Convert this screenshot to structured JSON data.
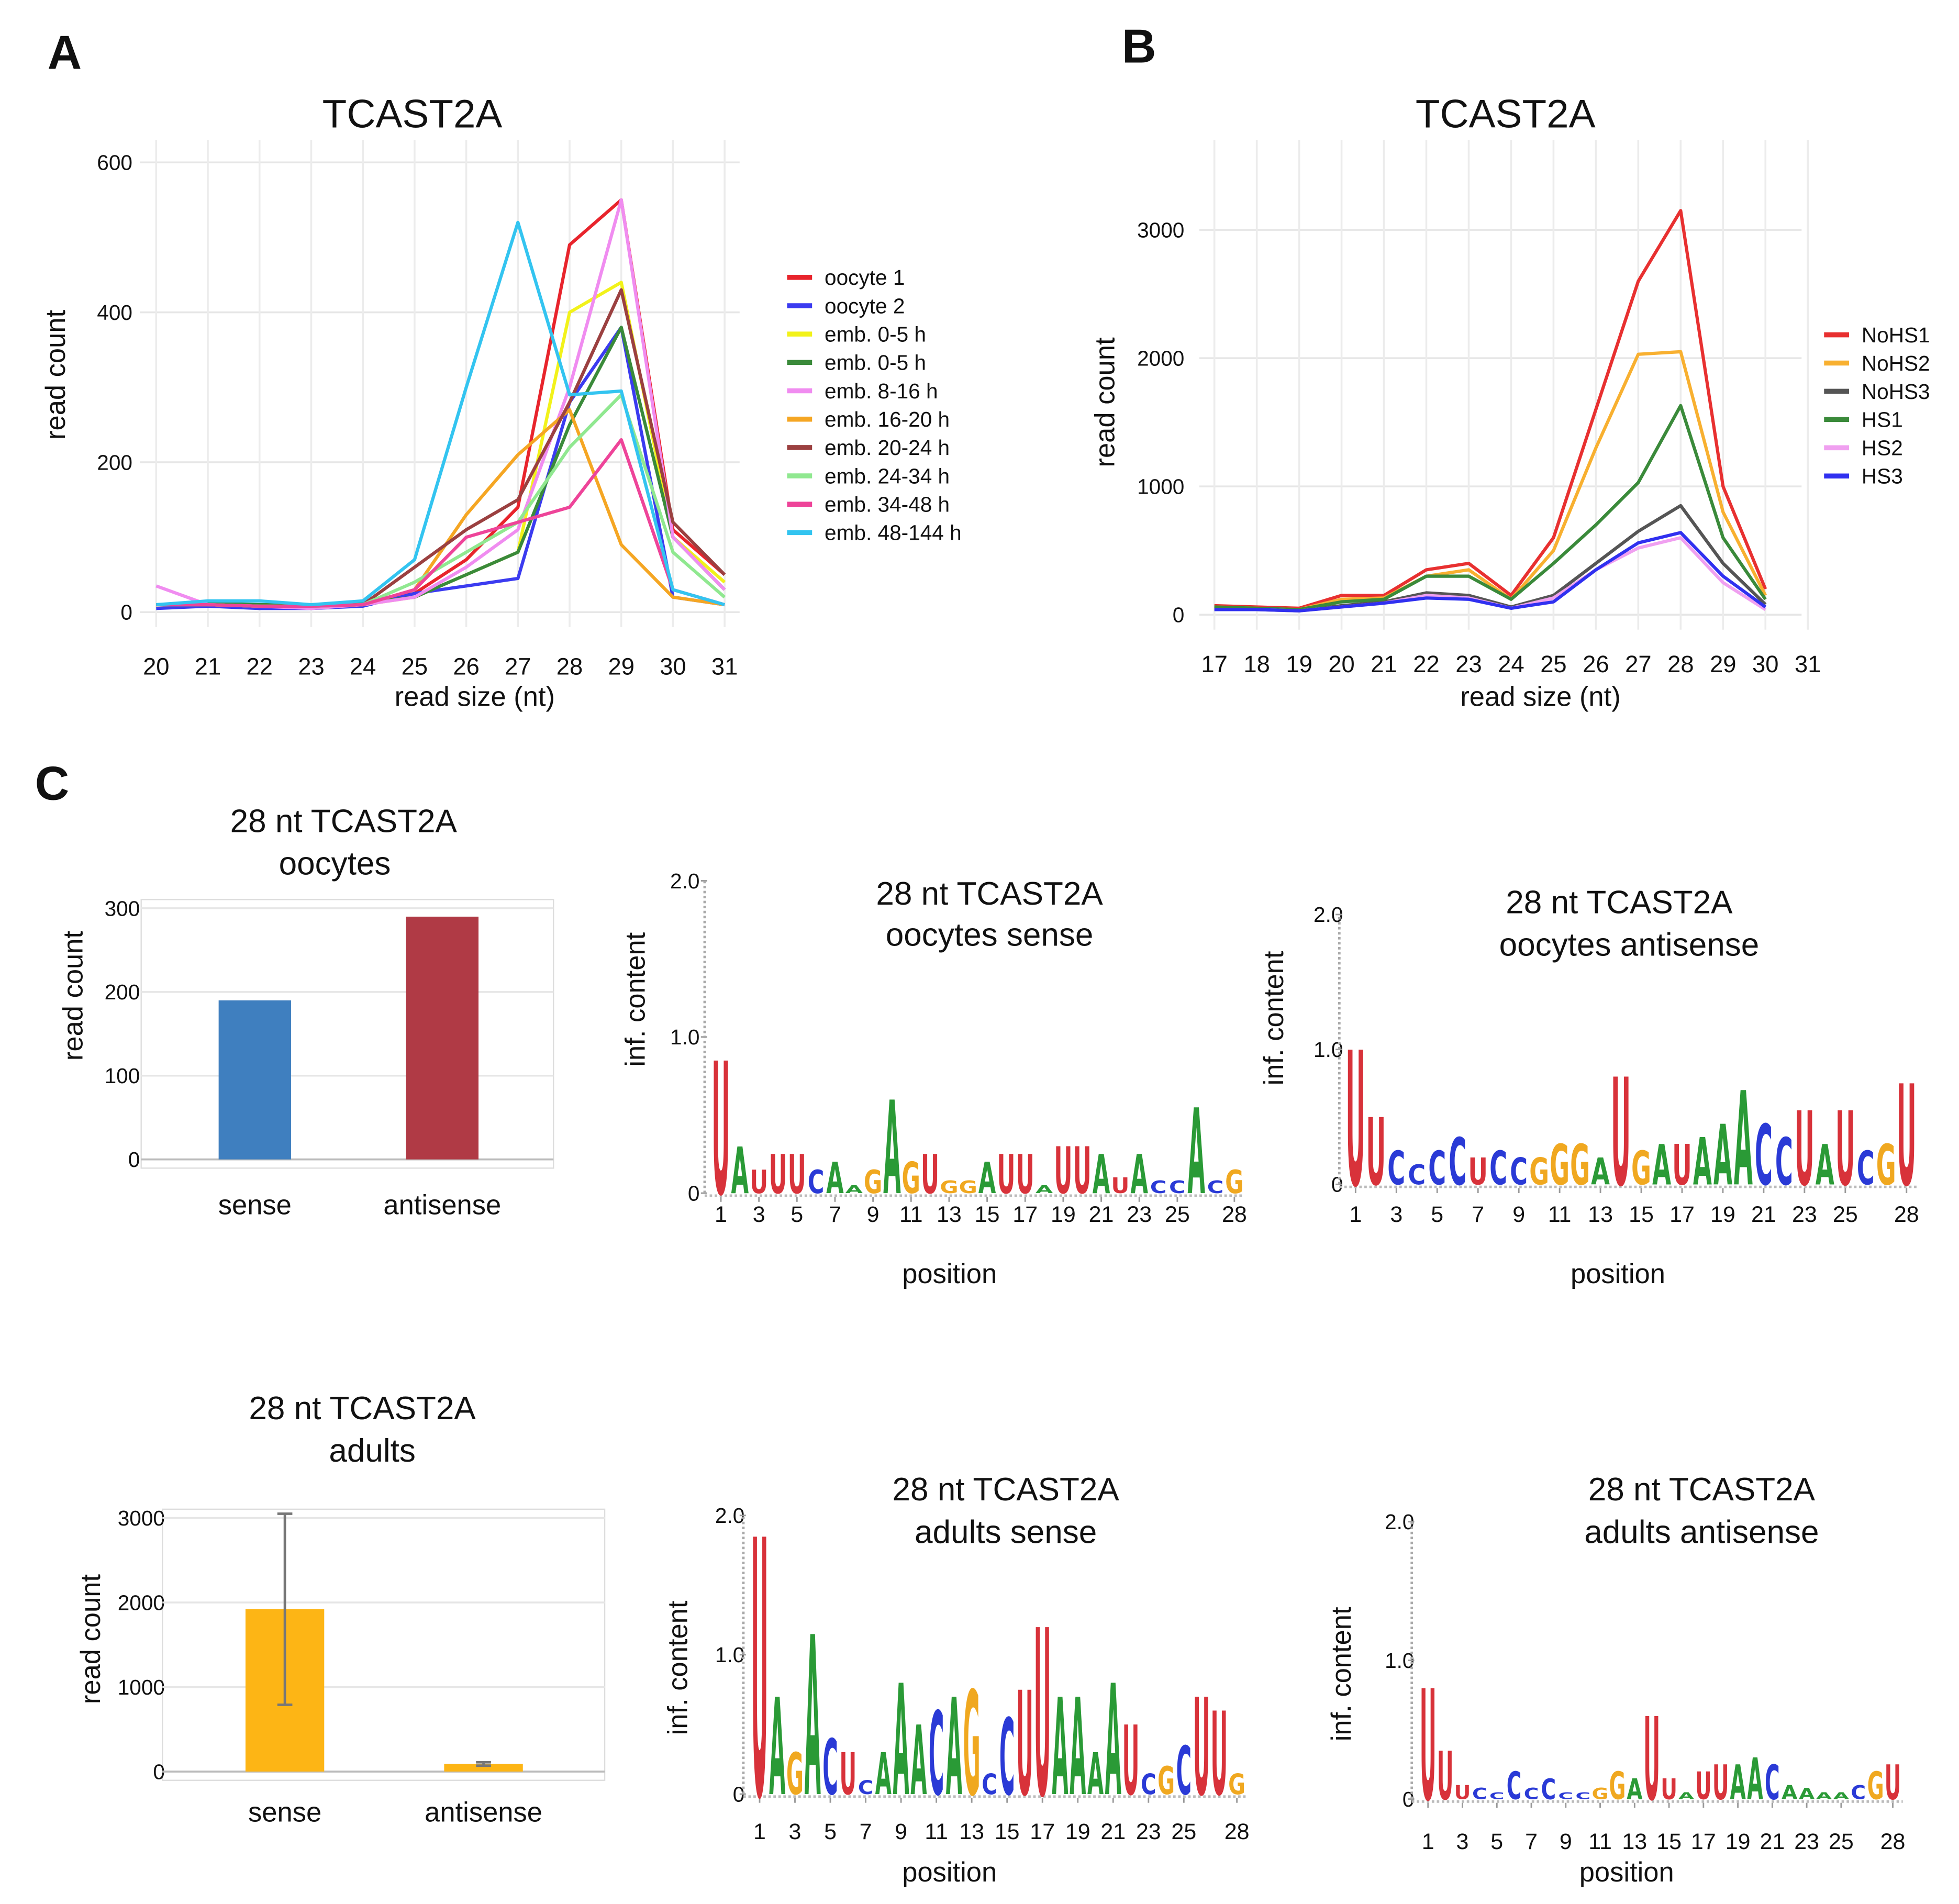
{
  "panels": [
    "A",
    "B",
    "C"
  ],
  "chart_data": [
    {
      "type": "line",
      "title": "TCAST2A",
      "ylabel": "read count",
      "xlabel": "read size  (nt)",
      "x": [
        20,
        21,
        22,
        23,
        24,
        25,
        26,
        27,
        28,
        29,
        30,
        31
      ],
      "xlim": [
        20,
        31
      ],
      "xticks": [
        20,
        21,
        22,
        23,
        24,
        25,
        26,
        27,
        28,
        29,
        30,
        31
      ],
      "ylim": [
        0,
        600
      ],
      "yticks": [
        0,
        200,
        400,
        600
      ],
      "grid": true,
      "legend": "right",
      "series": [
        {
          "name": "oocyte 1",
          "color": "#e8242c",
          "values": [
            10,
            10,
            8,
            8,
            10,
            25,
            70,
            140,
            490,
            550,
            110,
            50
          ]
        },
        {
          "name": "oocyte 2",
          "color": "#3b3bf0",
          "values": [
            5,
            8,
            5,
            5,
            8,
            25,
            35,
            45,
            280,
            380,
            20,
            10
          ]
        },
        {
          "name": "emb. 0-5 h",
          "color": "#f2f21a",
          "values": [
            10,
            10,
            8,
            8,
            10,
            20,
            50,
            80,
            400,
            440,
            100,
            40
          ]
        },
        {
          "name": "emb. 0-5 h",
          "color": "#3a8a3a",
          "values": [
            10,
            12,
            10,
            10,
            12,
            20,
            50,
            80,
            250,
            380,
            100,
            30
          ]
        },
        {
          "name": "emb. 8-16 h",
          "color": "#f08cf0",
          "values": [
            35,
            10,
            8,
            5,
            10,
            20,
            60,
            110,
            300,
            550,
            100,
            30
          ]
        },
        {
          "name": "emb. 16-20 h",
          "color": "#f5a623",
          "values": [
            10,
            10,
            8,
            8,
            10,
            30,
            130,
            210,
            270,
            90,
            20,
            10
          ]
        },
        {
          "name": "emb. 20-24 h",
          "color": "#9b4040",
          "values": [
            10,
            10,
            8,
            8,
            10,
            60,
            110,
            150,
            280,
            430,
            120,
            50
          ]
        },
        {
          "name": "emb. 24-34 h",
          "color": "#90e890",
          "values": [
            10,
            10,
            8,
            8,
            10,
            40,
            80,
            120,
            220,
            290,
            80,
            20
          ]
        },
        {
          "name": "emb. 34-48 h",
          "color": "#ee4499",
          "values": [
            10,
            10,
            8,
            8,
            10,
            30,
            100,
            120,
            140,
            230,
            30,
            10
          ]
        },
        {
          "name": "emb. 48-144 h",
          "color": "#33c4f0",
          "values": [
            10,
            15,
            15,
            10,
            15,
            70,
            300,
            520,
            290,
            295,
            30,
            10
          ]
        }
      ]
    },
    {
      "type": "line",
      "title": "TCAST2A",
      "ylabel": "read count",
      "xlabel": "read size (nt)",
      "x": [
        17,
        18,
        19,
        20,
        21,
        22,
        23,
        24,
        25,
        26,
        27,
        28,
        29,
        30
      ],
      "xlim": [
        17,
        31
      ],
      "xticks": [
        17,
        18,
        19,
        20,
        21,
        22,
        23,
        24,
        25,
        26,
        27,
        28,
        29,
        30,
        31
      ],
      "ylim": [
        0,
        3000
      ],
      "yticks": [
        0,
        1000,
        2000,
        3000
      ],
      "grid": true,
      "legend": "right",
      "series": [
        {
          "name": "NoHS1",
          "color": "#e83030",
          "values": [
            70,
            60,
            50,
            150,
            150,
            350,
            400,
            150,
            600,
            1600,
            2600,
            3150,
            1000,
            200
          ]
        },
        {
          "name": "NoHS2",
          "color": "#f8b030",
          "values": [
            60,
            50,
            40,
            120,
            130,
            300,
            350,
            120,
            500,
            1300,
            2030,
            2050,
            800,
            150
          ]
        },
        {
          "name": "NoHS3",
          "color": "#555555",
          "values": [
            50,
            40,
            30,
            70,
            100,
            170,
            150,
            60,
            150,
            400,
            650,
            850,
            400,
            80
          ]
        },
        {
          "name": "HS1",
          "color": "#3a8a3a",
          "values": [
            60,
            50,
            40,
            100,
            120,
            300,
            300,
            120,
            400,
            700,
            1030,
            1630,
            600,
            120
          ]
        },
        {
          "name": "HS2",
          "color": "#f0a0f0",
          "values": [
            40,
            40,
            30,
            60,
            90,
            150,
            130,
            50,
            130,
            350,
            520,
            600,
            250,
            40
          ]
        },
        {
          "name": "HS3",
          "color": "#3030f0",
          "values": [
            40,
            40,
            30,
            60,
            90,
            130,
            120,
            50,
            100,
            350,
            560,
            640,
            300,
            60
          ]
        }
      ]
    },
    {
      "type": "bar",
      "title": [
        "28 nt TCAST2A",
        "oocytes"
      ],
      "ylabel": "read count",
      "categories": [
        "sense",
        "antisense"
      ],
      "values": [
        190,
        290
      ],
      "colors": [
        "#3f7fbf",
        "#b03a45"
      ],
      "ylim": [
        0,
        300
      ],
      "yticks": [
        0,
        100,
        200,
        300
      ],
      "grid": true
    },
    {
      "type": "logo",
      "title": [
        "28 nt TCAST2A",
        "oocytes sense"
      ],
      "ylabel": "inf. content",
      "xlabel": "position",
      "letters": [
        "U",
        "A",
        "U",
        "U",
        "U",
        "C",
        "A",
        "A",
        "G",
        "A",
        "G",
        "U",
        "G",
        "G",
        "A",
        "U",
        "U",
        "A",
        "U",
        "U",
        "A",
        "U",
        "A",
        "C",
        "C",
        "A",
        "C",
        "G"
      ],
      "values": [
        0.85,
        0.3,
        0.15,
        0.25,
        0.25,
        0.15,
        0.2,
        0.05,
        0.15,
        0.6,
        0.2,
        0.25,
        0.08,
        0.08,
        0.2,
        0.25,
        0.25,
        0.05,
        0.3,
        0.3,
        0.25,
        0.1,
        0.25,
        0.08,
        0.08,
        0.55,
        0.08,
        0.15
      ],
      "xlim": [
        1,
        28
      ],
      "xticks": [
        1,
        3,
        5,
        7,
        9,
        11,
        13,
        15,
        17,
        19,
        21,
        23,
        25,
        28
      ],
      "ylim": [
        0,
        2
      ],
      "yticks": [
        0,
        {
          "value": 1,
          "label": "1.0"
        },
        {
          "value": 2,
          "label": "2.0"
        }
      ],
      "letter_colors": {
        "A": "#2a9a36",
        "C": "#2a3ad6",
        "G": "#f0a820",
        "U": "#d8323a"
      }
    },
    {
      "type": "logo",
      "title": [
        "28 nt TCAST2A",
        "oocytes antisense"
      ],
      "ylabel": "inf. content",
      "xlabel": "position",
      "letters": [
        "U",
        "U",
        "C",
        "C",
        "C",
        "C",
        "U",
        "C",
        "C",
        "G",
        "G",
        "G",
        "A",
        "U",
        "G",
        "A",
        "U",
        "A",
        "A",
        "A",
        "C",
        "C",
        "U",
        "A",
        "U",
        "C",
        "G",
        "U"
      ],
      "values": [
        1.0,
        0.5,
        0.25,
        0.15,
        0.25,
        0.35,
        0.2,
        0.25,
        0.2,
        0.2,
        0.3,
        0.3,
        0.2,
        0.8,
        0.25,
        0.3,
        0.3,
        0.35,
        0.45,
        0.7,
        0.45,
        0.35,
        0.55,
        0.3,
        0.55,
        0.25,
        0.3,
        0.75
      ],
      "xlim": [
        1,
        28
      ],
      "xticks": [
        1,
        3,
        5,
        7,
        9,
        11,
        13,
        15,
        17,
        19,
        21,
        23,
        25,
        28
      ],
      "ylim": [
        0,
        2
      ],
      "yticks": [
        0,
        {
          "value": 1,
          "label": "1.0"
        },
        {
          "value": 2,
          "label": "2.0"
        }
      ],
      "letter_colors": {
        "A": "#2a9a36",
        "C": "#2a3ad6",
        "G": "#f0a820",
        "U": "#d8323a"
      }
    },
    {
      "type": "bar",
      "title": [
        "28 nt TCAST2A",
        "adults"
      ],
      "ylabel": "read count",
      "categories": [
        "sense",
        "antisense"
      ],
      "values": [
        1920,
        90
      ],
      "error": [
        1130,
        20
      ],
      "colors": [
        "#fdb515",
        "#fdb515"
      ],
      "ylim": [
        0,
        3000
      ],
      "yticks": [
        0,
        1000,
        2000,
        3000
      ],
      "grid": true
    },
    {
      "type": "logo",
      "title": [
        "28 nt TCAST2A",
        "adults sense"
      ],
      "ylabel": "inf. content",
      "xlabel": "position",
      "letters": [
        "U",
        "A",
        "G",
        "A",
        "C",
        "U",
        "C",
        "A",
        "A",
        "A",
        "C",
        "A",
        "G",
        "C",
        "C",
        "U",
        "U",
        "A",
        "A",
        "A",
        "A",
        "U",
        "C",
        "G",
        "C",
        "U",
        "U",
        "G"
      ],
      "values": [
        1.85,
        0.7,
        0.3,
        1.15,
        0.4,
        0.3,
        0.1,
        0.3,
        0.8,
        0.5,
        0.6,
        0.7,
        0.75,
        0.15,
        0.55,
        0.75,
        1.2,
        0.7,
        0.7,
        0.3,
        0.8,
        0.5,
        0.15,
        0.2,
        0.35,
        0.7,
        0.6,
        0.15
      ],
      "xlim": [
        1,
        28
      ],
      "xticks": [
        1,
        3,
        5,
        7,
        9,
        11,
        13,
        15,
        17,
        19,
        21,
        23,
        25,
        28
      ],
      "ylim": [
        0,
        2
      ],
      "yticks": [
        0,
        {
          "value": 1,
          "label": "1.0"
        },
        {
          "value": 2,
          "label": "2.0"
        }
      ],
      "letter_colors": {
        "A": "#2a9a36",
        "C": "#2a3ad6",
        "G": "#f0a820",
        "U": "#d8323a"
      }
    },
    {
      "type": "logo",
      "title": [
        "28 nt TCAST2A",
        "adults antisense"
      ],
      "ylabel": "inf. content",
      "xlabel": "position",
      "letters": [
        "U",
        "U",
        "U",
        "C",
        "C",
        "C",
        "C",
        "C",
        "C",
        "C",
        "G",
        "G",
        "A",
        "U",
        "U",
        "A",
        "U",
        "U",
        "A",
        "A",
        "C",
        "A",
        "A",
        "A",
        "A",
        "C",
        "G",
        "U"
      ],
      "values": [
        0.8,
        0.35,
        0.1,
        0.08,
        0.05,
        0.2,
        0.08,
        0.15,
        0.05,
        0.05,
        0.08,
        0.2,
        0.15,
        0.6,
        0.15,
        0.05,
        0.2,
        0.25,
        0.25,
        0.3,
        0.25,
        0.1,
        0.08,
        0.05,
        0.05,
        0.1,
        0.2,
        0.25
      ],
      "xlim": [
        1,
        28
      ],
      "xticks": [
        1,
        3,
        5,
        7,
        9,
        11,
        13,
        15,
        17,
        19,
        21,
        23,
        25,
        28
      ],
      "ylim": [
        0,
        2
      ],
      "yticks": [
        0,
        {
          "value": 1,
          "label": "1.0"
        },
        {
          "value": 2,
          "label": "2.0"
        }
      ],
      "letter_colors": {
        "A": "#2a9a36",
        "C": "#2a3ad6",
        "G": "#f0a820",
        "U": "#d8323a"
      }
    }
  ]
}
